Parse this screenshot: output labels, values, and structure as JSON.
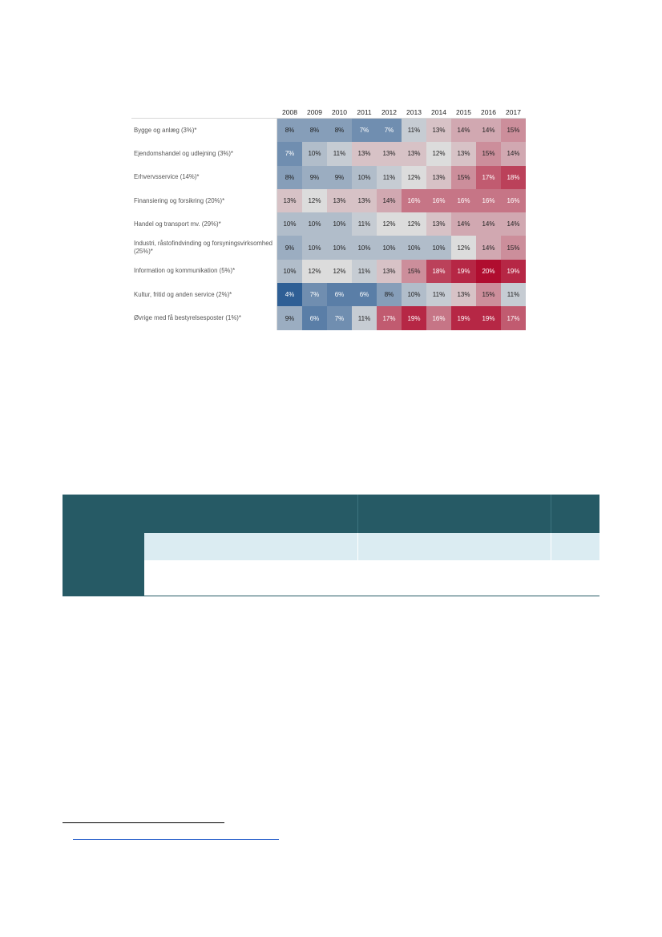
{
  "chart_data": {
    "type": "heatmap",
    "title": "",
    "columns": [
      "2008",
      "2009",
      "2010",
      "2011",
      "2012",
      "2013",
      "2014",
      "2015",
      "2016",
      "2017"
    ],
    "rows": [
      {
        "label": "Bygge og anlæg (3%)*",
        "values": [
          8,
          8,
          8,
          7,
          7,
          11,
          13,
          14,
          14,
          15
        ]
      },
      {
        "label": "Ejendomshandel og udlejning (3%)*",
        "values": [
          7,
          10,
          11,
          13,
          13,
          13,
          12,
          13,
          15,
          14
        ]
      },
      {
        "label": "Erhvervsservice (14%)*",
        "values": [
          8,
          9,
          9,
          10,
          11,
          12,
          13,
          15,
          17,
          18
        ]
      },
      {
        "label": "Finansiering og forsikring (20%)*",
        "values": [
          13,
          12,
          13,
          13,
          14,
          16,
          16,
          16,
          16,
          16
        ]
      },
      {
        "label": "Handel og transport mv. (29%)*",
        "values": [
          10,
          10,
          10,
          11,
          12,
          12,
          13,
          14,
          14,
          14
        ]
      },
      {
        "label": "Industri, råstofindvinding og forsyningsvirksomhed (25%)*",
        "values": [
          9,
          10,
          10,
          10,
          10,
          10,
          10,
          12,
          14,
          15
        ]
      },
      {
        "label": "Information og kommunikation (5%)*",
        "values": [
          10,
          12,
          12,
          11,
          13,
          15,
          18,
          19,
          20,
          19
        ]
      },
      {
        "label": "Kultur, fritid og anden service (2%)*",
        "values": [
          4,
          7,
          6,
          6,
          8,
          10,
          11,
          13,
          15,
          11
        ]
      },
      {
        "label": "Øvrige med få bestyrelsesposter (1%)*",
        "values": [
          9,
          6,
          7,
          11,
          17,
          19,
          16,
          19,
          19,
          17
        ]
      }
    ],
    "value_suffix": "%",
    "color_scale": {
      "low": "#2f5f95",
      "mid": "#dcdcdc",
      "high": "#b00d2f",
      "domain": [
        4,
        12,
        20
      ]
    }
  },
  "table_block": {
    "header_color": "#265a65",
    "row_alt_color": "#dbecf2"
  }
}
